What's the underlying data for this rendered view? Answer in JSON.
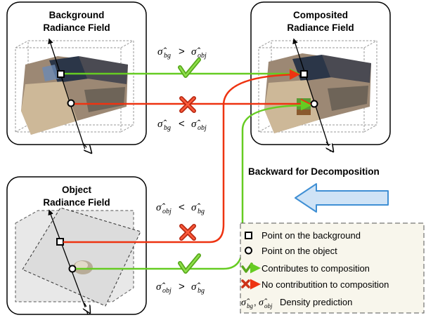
{
  "panels": {
    "background": {
      "title_line1": "Background",
      "title_line2": "Radiance Field"
    },
    "composited": {
      "title_line1": "Composited",
      "title_line2": "Radiance Field"
    },
    "object": {
      "title_line1": "Object",
      "title_line2": "Radiance Field"
    }
  },
  "conditions": {
    "bg_gt_obj": {
      "lhs": "σ̂",
      "lhs_sub": "bg",
      "op": ">",
      "rhs": "σ̂",
      "rhs_sub": "obj"
    },
    "bg_lt_obj": {
      "lhs": "σ̂",
      "lhs_sub": "bg",
      "op": "<",
      "rhs": "σ̂",
      "rhs_sub": "obj"
    },
    "obj_lt_bg": {
      "lhs": "σ̂",
      "lhs_sub": "obj",
      "op": "<",
      "rhs": "σ̂",
      "rhs_sub": "bg"
    },
    "obj_gt_bg": {
      "lhs": "σ̂",
      "lhs_sub": "obj",
      "op": ">",
      "rhs": "σ̂",
      "rhs_sub": "bg"
    }
  },
  "backward_label": "Backward for Decomposition",
  "legend": {
    "items": [
      {
        "symbol": "square",
        "label": "Point on the background"
      },
      {
        "symbol": "circle",
        "label": "Point on the object"
      },
      {
        "symbol": "check-arrow",
        "label": "Contributes to composition"
      },
      {
        "symbol": "cross-arrow",
        "label": "No contributition to composition"
      },
      {
        "symbol": "density",
        "label": "Density prediction",
        "sym1": "σ̂",
        "sub1": "bg",
        "sep": ", ",
        "sym2": "σ̂",
        "sub2": "obj"
      }
    ]
  },
  "colors": {
    "green": "#66cc22",
    "red": "#ee3311",
    "backward_arrow_fill": "#cfe3f6",
    "backward_arrow_stroke": "#3f8fd4",
    "legend_bg": "#f8f6ec"
  }
}
